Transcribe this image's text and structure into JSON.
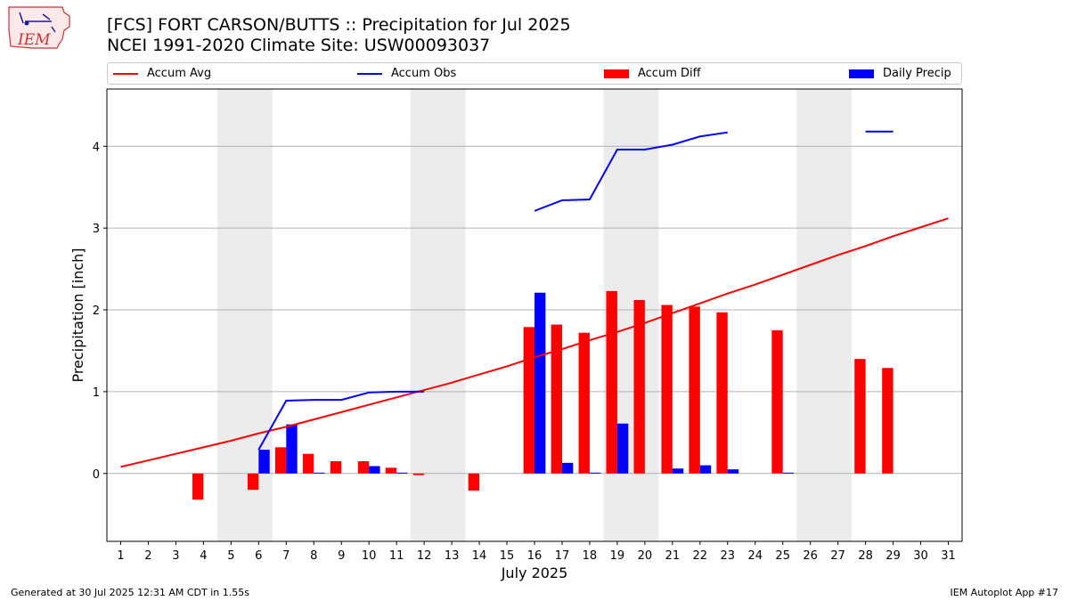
{
  "header": {
    "title_line1": "[FCS] FORT CARSON/BUTTS :: Precipitation for Jul 2025",
    "title_line2": "NCEI 1991-2020 Climate Site: USW00093037"
  },
  "logo": {
    "text": "IEM"
  },
  "legend": {
    "items": [
      {
        "label": "Accum Avg",
        "kind": "line",
        "color": "#ff0000"
      },
      {
        "label": "Accum Obs",
        "kind": "line",
        "color": "#0000ff"
      },
      {
        "label": "Accum Diff",
        "kind": "box",
        "color": "#ff0000"
      },
      {
        "label": "Daily Precip",
        "kind": "box",
        "color": "#0000ff"
      }
    ]
  },
  "footer": {
    "left": "Generated at 30 Jul 2025 12:31 AM CDT in 1.55s",
    "right": "IEM Autoplot App #17"
  },
  "chart_data": {
    "type": "bar",
    "xlabel": "July 2025",
    "ylabel": "Precipitation [inch]",
    "xlim": [
      0.5,
      31.5
    ],
    "ylim": [
      -0.83,
      4.7
    ],
    "categories": [
      "1",
      "2",
      "3",
      "4",
      "5",
      "6",
      "7",
      "8",
      "9",
      "10",
      "11",
      "12",
      "13",
      "14",
      "15",
      "16",
      "17",
      "18",
      "19",
      "20",
      "21",
      "22",
      "23",
      "24",
      "25",
      "26",
      "27",
      "28",
      "29",
      "30",
      "31"
    ],
    "yticks": [
      0,
      1,
      2,
      3,
      4
    ],
    "grid": "horizontal",
    "weekend_shading": [
      [
        5,
        6
      ],
      [
        12,
        13
      ],
      [
        19,
        20
      ],
      [
        26,
        27
      ]
    ],
    "series": [
      {
        "name": "Accum Avg",
        "kind": "line",
        "color": "#ff0000",
        "values": [
          0.08,
          0.16,
          0.24,
          0.32,
          0.4,
          0.49,
          0.57,
          0.66,
          0.75,
          0.84,
          0.93,
          1.02,
          1.11,
          1.21,
          1.31,
          1.42,
          1.52,
          1.63,
          1.73,
          1.84,
          1.96,
          2.08,
          2.2,
          2.31,
          2.43,
          2.55,
          2.67,
          2.78,
          2.9,
          3.01,
          3.12
        ]
      },
      {
        "name": "Accum Obs",
        "kind": "line",
        "color": "#0000ff",
        "values": [
          null,
          null,
          null,
          null,
          null,
          0.29,
          0.89,
          0.9,
          0.9,
          0.99,
          1.0,
          1.0,
          null,
          null,
          null,
          3.21,
          3.34,
          3.35,
          3.96,
          3.96,
          4.02,
          4.12,
          4.17,
          null,
          null,
          null,
          null,
          4.18,
          4.18,
          null,
          null
        ]
      },
      {
        "name": "Accum Diff",
        "kind": "bar",
        "color": "#ff0000",
        "values": [
          0,
          0,
          0,
          -0.32,
          0,
          -0.2,
          0.32,
          0.24,
          0.15,
          0.15,
          0.07,
          -0.02,
          0,
          -0.21,
          0,
          1.79,
          1.82,
          1.72,
          2.23,
          2.12,
          2.06,
          2.04,
          1.97,
          0,
          1.75,
          0,
          0,
          1.4,
          1.29,
          0,
          0
        ]
      },
      {
        "name": "Daily Precip",
        "kind": "bar",
        "color": "#0000ff",
        "values": [
          0,
          0,
          0,
          0,
          0,
          0.29,
          0.6,
          0.01,
          0,
          0.09,
          0.01,
          0,
          0,
          0,
          0,
          2.21,
          0.13,
          0.01,
          0.61,
          0,
          0.06,
          0.1,
          0.05,
          0,
          0.01,
          0,
          0,
          0,
          0,
          0,
          0
        ]
      }
    ]
  }
}
